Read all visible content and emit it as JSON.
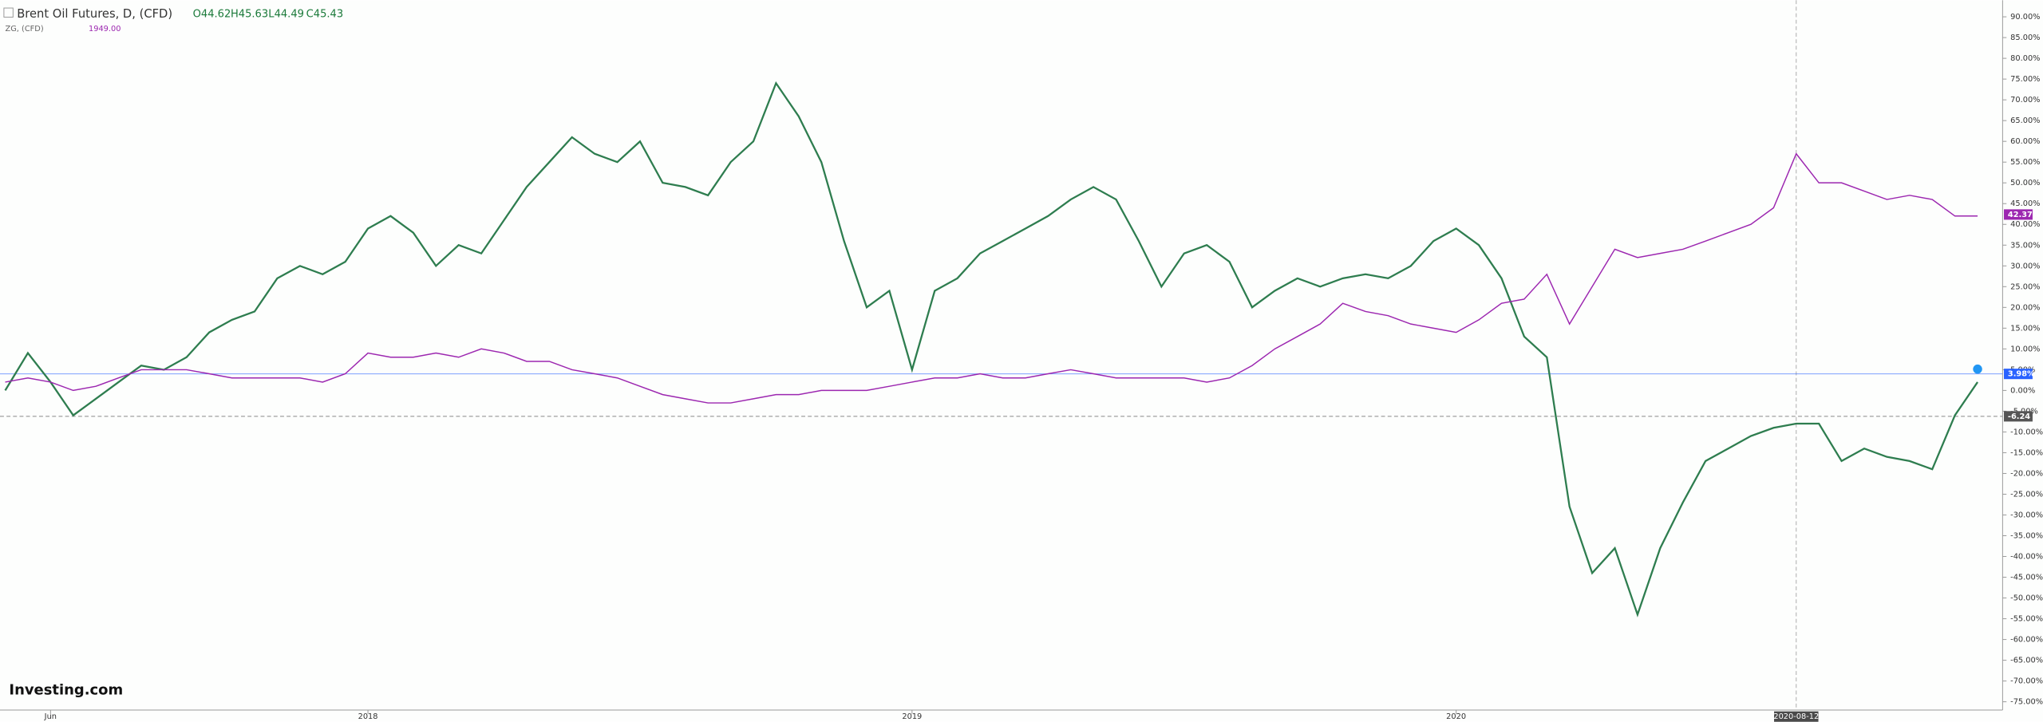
{
  "chart_data": {
    "type": "line",
    "title": "Brent Oil Futures, D, (CFD)",
    "ohlc": [
      "O44.62",
      "H45.63",
      "L44.49",
      "C45.43"
    ],
    "subtitle": "ZG, (CFD)",
    "subtitle_value": "1949.00",
    "brand": "Investing.com",
    "categories": [
      null,
      null,
      "Jun",
      null,
      null,
      null,
      null,
      null,
      null,
      null,
      null,
      null,
      null,
      null,
      null,
      null,
      "2018",
      null,
      null,
      null,
      null,
      null,
      null,
      null,
      null,
      null,
      null,
      null,
      null,
      null,
      null,
      null,
      null,
      null,
      null,
      null,
      null,
      null,
      null,
      null,
      "2019",
      null,
      null,
      null,
      null,
      null,
      null,
      null,
      null,
      null,
      null,
      null,
      null,
      null,
      null,
      null,
      null,
      null,
      null,
      null,
      null,
      null,
      null,
      null,
      "2020",
      null,
      null,
      null,
      null,
      null,
      null,
      null,
      null,
      null,
      null,
      null,
      null,
      null,
      null,
      "2020-08-12",
      null,
      null,
      null,
      null,
      null,
      null,
      null,
      null
    ],
    "crosshair_index": 79,
    "series": [
      {
        "name": "Brent Oil Futures, D, (CFD)",
        "color": "#2e7d4f",
        "values": [
          0,
          9,
          2,
          -6,
          -2,
          2,
          6,
          5,
          8,
          14,
          17,
          19,
          27,
          30,
          28,
          31,
          39,
          42,
          38,
          30,
          35,
          33,
          41,
          49,
          55,
          61,
          57,
          55,
          60,
          50,
          49,
          47,
          55,
          60,
          74,
          66,
          55,
          36,
          20,
          24,
          5,
          24,
          27,
          33,
          36,
          39,
          42,
          46,
          49,
          46,
          36,
          25,
          33,
          35,
          31,
          20,
          24,
          27,
          25,
          27,
          28,
          27,
          30,
          36,
          39,
          35,
          27,
          13,
          8,
          -28,
          -44,
          -38,
          -54,
          -38,
          -27,
          -17,
          -14,
          -11,
          -9,
          -8,
          -8,
          -17,
          -14,
          -16,
          -17,
          -19,
          -6,
          2
        ]
      },
      {
        "name": "ZG, (CFD)",
        "color": "#9c27b0",
        "values": [
          2,
          3,
          2,
          0,
          1,
          3,
          5,
          5,
          5,
          4,
          3,
          3,
          3,
          3,
          2,
          4,
          9,
          8,
          8,
          9,
          8,
          10,
          9,
          7,
          7,
          5,
          4,
          3,
          1,
          -1,
          -2,
          -3,
          -3,
          -2,
          -1,
          -1,
          0,
          0,
          0,
          1,
          2,
          3,
          3,
          4,
          3,
          3,
          4,
          5,
          4,
          3,
          3,
          3,
          3,
          2,
          3,
          6,
          10,
          13,
          16,
          21,
          19,
          18,
          16,
          15,
          14,
          17,
          21,
          22,
          28,
          16,
          25,
          34,
          32,
          33,
          34,
          36,
          38,
          40,
          44,
          57,
          50,
          50,
          48,
          46,
          47,
          46,
          42,
          42
        ]
      }
    ],
    "annotations": [
      {
        "value": 3.98,
        "label": "3.98%",
        "color": "#2962ff"
      },
      {
        "value": 42.37,
        "label": "42.37%",
        "color": "#9c27b0"
      },
      {
        "value": -6.24,
        "label": "-6.24",
        "color": "#555555"
      }
    ],
    "ylim": [
      -77,
      94
    ],
    "yticks": [
      {
        "value": 90,
        "label": "90.00%"
      },
      {
        "value": 85,
        "label": "85.00%"
      },
      {
        "value": 80,
        "label": "80.00%"
      },
      {
        "value": 75,
        "label": "75.00%"
      },
      {
        "value": 70,
        "label": "70.00%"
      },
      {
        "value": 65,
        "label": "65.00%"
      },
      {
        "value": 60,
        "label": "60.00%"
      },
      {
        "value": 55,
        "label": "55.00%"
      },
      {
        "value": 50,
        "label": "50.00%"
      },
      {
        "value": 45,
        "label": "45.00%"
      },
      {
        "value": 40,
        "label": "40.00%"
      },
      {
        "value": 35,
        "label": "35.00%"
      },
      {
        "value": 30,
        "label": "30.00%"
      },
      {
        "value": 25,
        "label": "25.00%"
      },
      {
        "value": 20,
        "label": "20.00%"
      },
      {
        "value": 15,
        "label": "15.00%"
      },
      {
        "value": 10,
        "label": "10.00%"
      },
      {
        "value": 5,
        "label": "5.00%"
      },
      {
        "value": 0,
        "label": "0.00%"
      },
      {
        "value": -5,
        "label": "-5.00%"
      },
      {
        "value": -10,
        "label": "-10.00%"
      },
      {
        "value": -15,
        "label": "-15.00%"
      },
      {
        "value": -20,
        "label": "-20.00%"
      },
      {
        "value": -25,
        "label": "-25.00%"
      },
      {
        "value": -30,
        "label": "-30.00%"
      },
      {
        "value": -35,
        "label": "-35.00%"
      },
      {
        "value": -40,
        "label": "-40.00%"
      },
      {
        "value": -45,
        "label": "-45.00%"
      },
      {
        "value": -50,
        "label": "-50.00%"
      },
      {
        "value": -55,
        "label": "-55.00%"
      },
      {
        "value": -60,
        "label": "-60.00%"
      },
      {
        "value": -65,
        "label": "-65.00%"
      },
      {
        "value": -70,
        "label": "-70.00%"
      },
      {
        "value": -75,
        "label": "-75.00%"
      }
    ],
    "grid": false
  }
}
